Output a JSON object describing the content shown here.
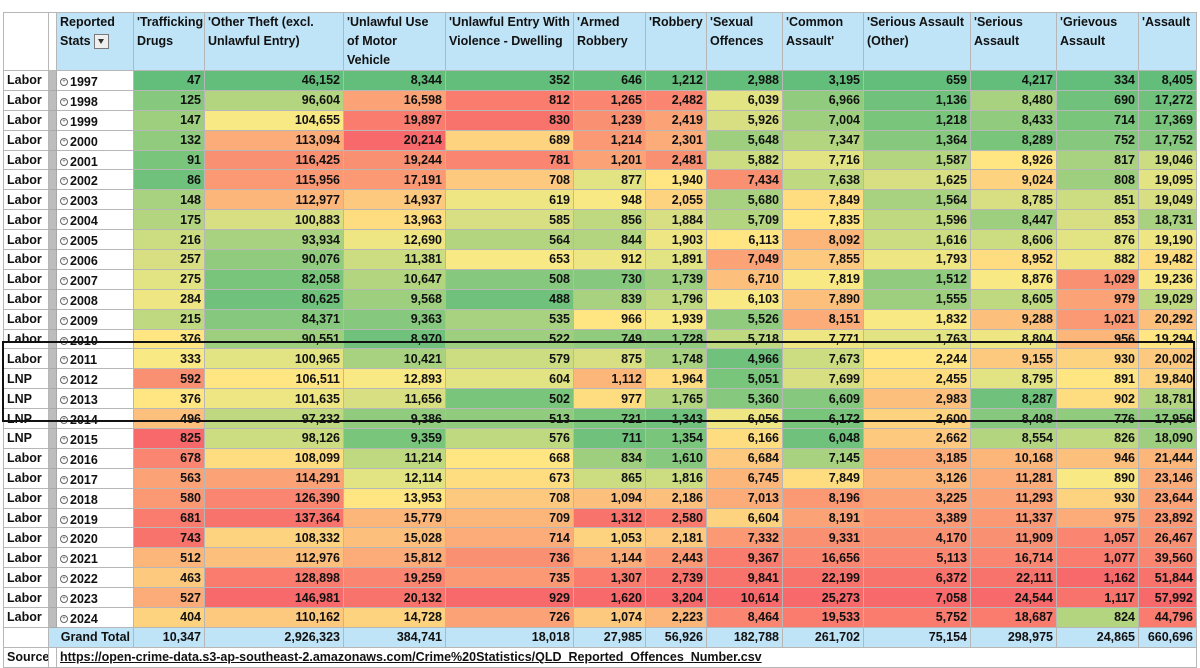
{
  "header": {
    "reported_stats": "Reported Stats",
    "columns": [
      "'Trafficking Drugs",
      "'Other Theft (excl. Unlawful Entry)",
      "'Unlawful Use of Motor Vehicle",
      "'Unlawful Entry With Violence - Dwelling",
      "'Armed Robbery",
      "'Robbery",
      "'Sexual Offences",
      "'Common Assault'",
      "'Serious Assault (Other)",
      "'Serious Assault",
      "'Grievous Assault",
      "'Assault"
    ]
  },
  "rows": [
    {
      "party": "Labor",
      "year": "1997",
      "values": [
        "47",
        "46,152",
        "8,344",
        "352",
        "646",
        "1,212",
        "2,988",
        "3,195",
        "659",
        "4,217",
        "334",
        "8,405"
      ]
    },
    {
      "party": "Labor",
      "year": "1998",
      "values": [
        "125",
        "96,604",
        "16,598",
        "812",
        "1,265",
        "2,482",
        "6,039",
        "6,966",
        "1,136",
        "8,480",
        "690",
        "17,272"
      ]
    },
    {
      "party": "Labor",
      "year": "1999",
      "values": [
        "147",
        "104,655",
        "19,897",
        "830",
        "1,239",
        "2,419",
        "5,926",
        "7,004",
        "1,218",
        "8,433",
        "714",
        "17,369"
      ]
    },
    {
      "party": "Labor",
      "year": "2000",
      "values": [
        "132",
        "113,094",
        "20,214",
        "689",
        "1,214",
        "2,301",
        "5,648",
        "7,347",
        "1,364",
        "8,289",
        "752",
        "17,752"
      ]
    },
    {
      "party": "Labor",
      "year": "2001",
      "values": [
        "91",
        "116,425",
        "19,244",
        "781",
        "1,201",
        "2,481",
        "5,882",
        "7,716",
        "1,587",
        "8,926",
        "817",
        "19,046"
      ]
    },
    {
      "party": "Labor",
      "year": "2002",
      "values": [
        "86",
        "115,956",
        "17,191",
        "708",
        "877",
        "1,940",
        "7,434",
        "7,638",
        "1,625",
        "9,024",
        "808",
        "19,095"
      ]
    },
    {
      "party": "Labor",
      "year": "2003",
      "values": [
        "148",
        "112,977",
        "14,937",
        "619",
        "948",
        "2,055",
        "5,680",
        "7,849",
        "1,564",
        "8,785",
        "851",
        "19,049"
      ]
    },
    {
      "party": "Labor",
      "year": "2004",
      "values": [
        "175",
        "100,883",
        "13,963",
        "585",
        "856",
        "1,884",
        "5,709",
        "7,835",
        "1,596",
        "8,447",
        "853",
        "18,731"
      ]
    },
    {
      "party": "Labor",
      "year": "2005",
      "values": [
        "216",
        "93,934",
        "12,690",
        "564",
        "844",
        "1,903",
        "6,113",
        "8,092",
        "1,616",
        "8,606",
        "876",
        "19,190"
      ]
    },
    {
      "party": "Labor",
      "year": "2006",
      "values": [
        "257",
        "90,076",
        "11,381",
        "653",
        "912",
        "1,891",
        "7,049",
        "7,855",
        "1,793",
        "8,952",
        "882",
        "19,482"
      ]
    },
    {
      "party": "Labor",
      "year": "2007",
      "values": [
        "275",
        "82,058",
        "10,647",
        "508",
        "730",
        "1,739",
        "6,710",
        "7,819",
        "1,512",
        "8,876",
        "1,029",
        "19,236"
      ]
    },
    {
      "party": "Labor",
      "year": "2008",
      "values": [
        "284",
        "80,625",
        "9,568",
        "488",
        "839",
        "1,796",
        "6,103",
        "7,890",
        "1,555",
        "8,605",
        "979",
        "19,029"
      ]
    },
    {
      "party": "Labor",
      "year": "2009",
      "values": [
        "215",
        "84,371",
        "9,363",
        "535",
        "966",
        "1,939",
        "5,526",
        "8,151",
        "1,832",
        "9,288",
        "1,021",
        "20,292"
      ]
    },
    {
      "party": "Labor",
      "year": "2010",
      "values": [
        "376",
        "90,551",
        "8,970",
        "522",
        "749",
        "1,728",
        "5,718",
        "7,771",
        "1,763",
        "8,804",
        "956",
        "19,294"
      ]
    },
    {
      "party": "Labor",
      "year": "2011",
      "values": [
        "333",
        "100,965",
        "10,421",
        "579",
        "875",
        "1,748",
        "4,966",
        "7,673",
        "2,244",
        "9,155",
        "930",
        "20,002"
      ]
    },
    {
      "party": "LNP",
      "year": "2012",
      "values": [
        "592",
        "106,511",
        "12,893",
        "604",
        "1,112",
        "1,964",
        "5,051",
        "7,699",
        "2,455",
        "8,795",
        "891",
        "19,840"
      ]
    },
    {
      "party": "LNP",
      "year": "2013",
      "values": [
        "376",
        "101,635",
        "11,656",
        "502",
        "977",
        "1,765",
        "5,360",
        "6,609",
        "2,983",
        "8,287",
        "902",
        "18,781"
      ]
    },
    {
      "party": "LNP",
      "year": "2014",
      "values": [
        "496",
        "97,232",
        "9,386",
        "513",
        "721",
        "1,343",
        "6,056",
        "6,172",
        "2,600",
        "8,408",
        "776",
        "17,956"
      ]
    },
    {
      "party": "LNP",
      "year": "2015",
      "values": [
        "825",
        "98,126",
        "9,359",
        "576",
        "711",
        "1,354",
        "6,166",
        "6,048",
        "2,662",
        "8,554",
        "826",
        "18,090"
      ]
    },
    {
      "party": "Labor",
      "year": "2016",
      "values": [
        "678",
        "108,099",
        "11,214",
        "668",
        "834",
        "1,610",
        "6,684",
        "7,145",
        "3,185",
        "10,168",
        "946",
        "21,444"
      ]
    },
    {
      "party": "Labor",
      "year": "2017",
      "values": [
        "563",
        "114,291",
        "12,114",
        "673",
        "865",
        "1,816",
        "6,745",
        "7,849",
        "3,126",
        "11,281",
        "890",
        "23,146"
      ]
    },
    {
      "party": "Labor",
      "year": "2018",
      "values": [
        "580",
        "126,390",
        "13,953",
        "708",
        "1,094",
        "2,186",
        "7,013",
        "8,196",
        "3,225",
        "11,293",
        "930",
        "23,644"
      ]
    },
    {
      "party": "Labor",
      "year": "2019",
      "values": [
        "681",
        "137,364",
        "15,779",
        "709",
        "1,312",
        "2,580",
        "6,604",
        "8,191",
        "3,389",
        "11,337",
        "975",
        "23,892"
      ]
    },
    {
      "party": "Labor",
      "year": "2020",
      "values": [
        "743",
        "108,332",
        "15,028",
        "714",
        "1,053",
        "2,181",
        "7,332",
        "9,331",
        "4,170",
        "11,909",
        "1,057",
        "26,467"
      ]
    },
    {
      "party": "Labor",
      "year": "2021",
      "values": [
        "512",
        "112,976",
        "15,812",
        "736",
        "1,144",
        "2,443",
        "9,367",
        "16,656",
        "5,113",
        "16,714",
        "1,077",
        "39,560"
      ]
    },
    {
      "party": "Labor",
      "year": "2022",
      "values": [
        "463",
        "128,898",
        "19,259",
        "735",
        "1,307",
        "2,739",
        "9,841",
        "22,199",
        "6,372",
        "22,111",
        "1,162",
        "51,844"
      ]
    },
    {
      "party": "Labor",
      "year": "2023",
      "values": [
        "527",
        "146,981",
        "20,132",
        "929",
        "1,620",
        "3,204",
        "10,614",
        "25,273",
        "7,058",
        "24,544",
        "1,117",
        "57,992"
      ]
    },
    {
      "party": "Labor",
      "year": "2024",
      "values": [
        "404",
        "110,162",
        "14,728",
        "726",
        "1,074",
        "2,223",
        "8,464",
        "19,533",
        "5,752",
        "18,687",
        "824",
        "44,796"
      ]
    }
  ],
  "total": {
    "label": "Grand Total",
    "values": [
      "10,347",
      "2,926,323",
      "384,741",
      "18,018",
      "27,985",
      "56,926",
      "182,788",
      "261,702",
      "75,154",
      "298,975",
      "24,865",
      "660,696"
    ]
  },
  "source": {
    "label": "Source:",
    "url": "https://open-crime-data.s3-ap-southeast-2.amazonaws.com/Crime%20Statistics/QLD_Reported_Offences_Number.csv"
  },
  "colors": {
    "header_bg": "#bfe3f7",
    "gutter_bg": "#bdbdbd",
    "scale_low": "#63be7b",
    "scale_mid": "#ffeb84",
    "scale_high": "#f8696b",
    "lnp_box": "#111111"
  }
}
